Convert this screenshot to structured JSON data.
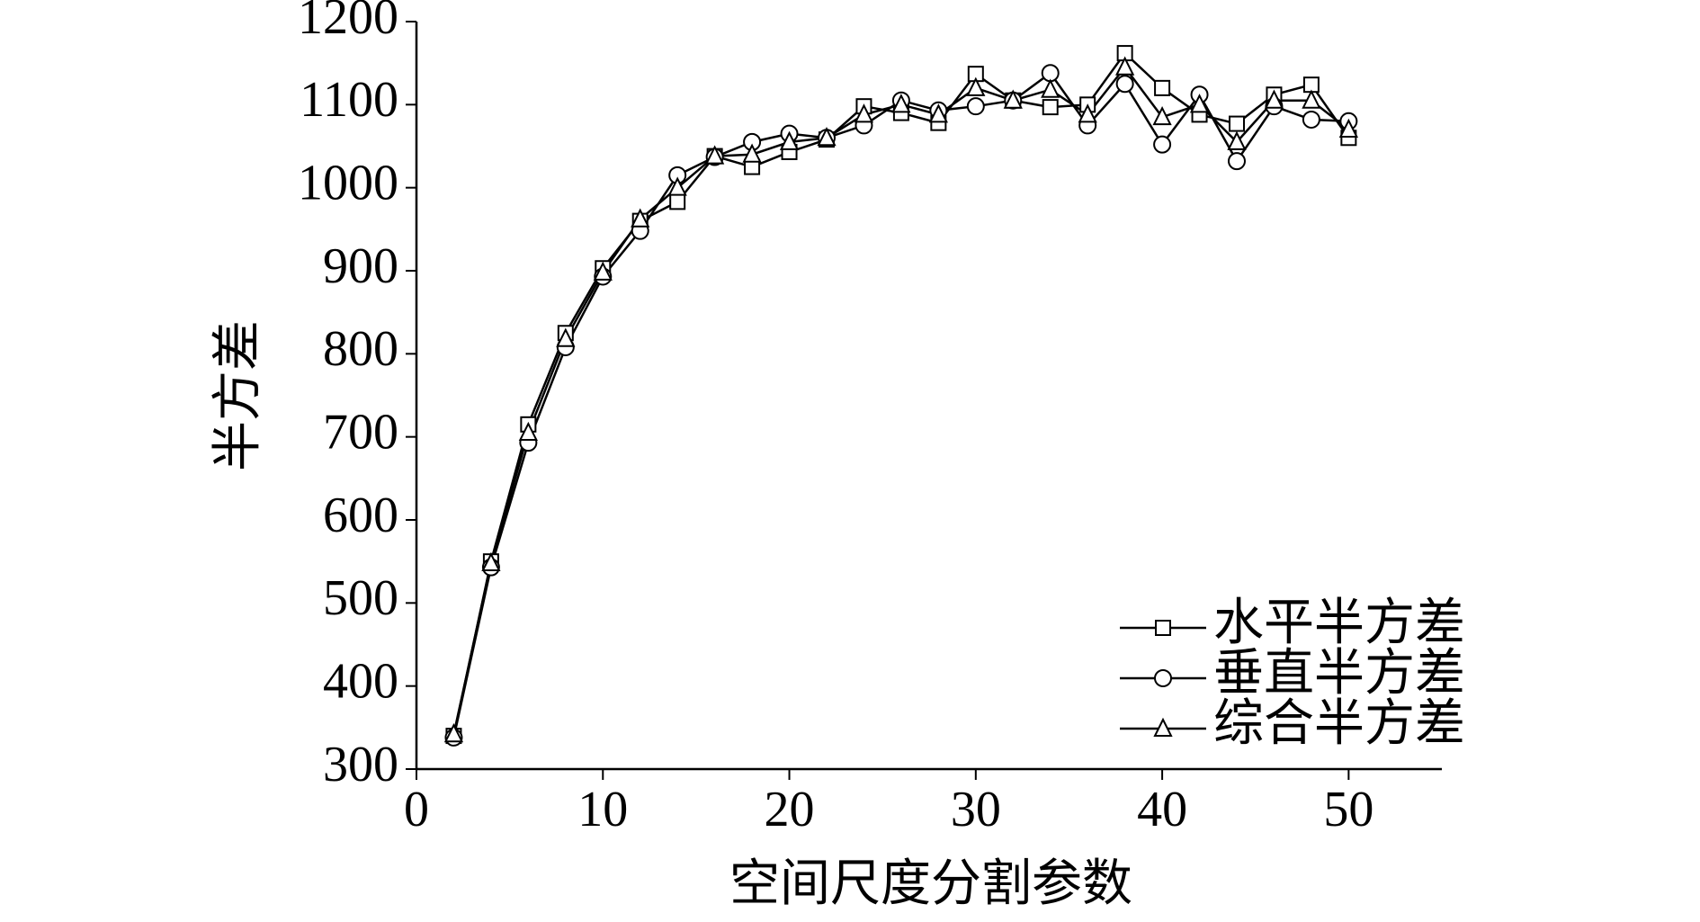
{
  "chart_data": {
    "type": "line",
    "x_label": "空间尺度分割参数",
    "y_label": "半方差",
    "x": [
      2,
      4,
      6,
      8,
      10,
      12,
      14,
      16,
      18,
      20,
      22,
      24,
      26,
      28,
      30,
      32,
      34,
      36,
      38,
      40,
      42,
      44,
      46,
      48,
      50
    ],
    "series": [
      {
        "name": "水平半方差",
        "color": "#000000",
        "marker": "square",
        "values": [
          340,
          550,
          715,
          825,
          903,
          960,
          983,
          1038,
          1025,
          1043,
          1058,
          1098,
          1090,
          1078,
          1137,
          1105,
          1097,
          1100,
          1162,
          1120,
          1088,
          1077,
          1112,
          1124,
          1060
        ]
      },
      {
        "name": "垂直半方差",
        "color": "#000000",
        "marker": "circle",
        "values": [
          338,
          543,
          693,
          808,
          893,
          948,
          1015,
          1037,
          1055,
          1065,
          1060,
          1075,
          1105,
          1093,
          1098,
          1105,
          1138,
          1075,
          1125,
          1052,
          1112,
          1032,
          1098,
          1082,
          1080
        ]
      },
      {
        "name": "综合半方差",
        "color": "#000000",
        "marker": "triangle",
        "values": [
          342,
          548,
          705,
          818,
          898,
          962,
          1000,
          1038,
          1040,
          1055,
          1060,
          1088,
          1100,
          1088,
          1120,
          1105,
          1118,
          1088,
          1145,
          1085,
          1100,
          1055,
          1105,
          1105,
          1070
        ]
      }
    ],
    "xlim": [
      0,
      55
    ],
    "xticks": [
      0,
      10,
      20,
      30,
      40,
      50
    ],
    "ylim": [
      300,
      1200
    ],
    "yticks": [
      300,
      400,
      500,
      600,
      700,
      800,
      900,
      1000,
      1100,
      1200
    ],
    "legend": "lower right"
  }
}
